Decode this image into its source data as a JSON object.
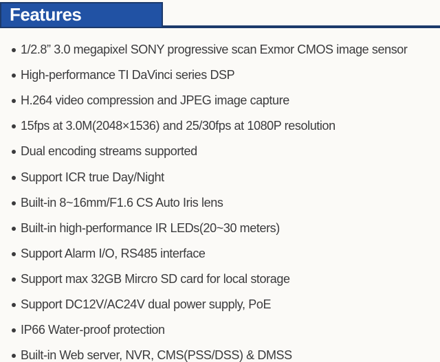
{
  "header": {
    "title": "Features"
  },
  "colors": {
    "background": "#fbfaf7",
    "header_fill": "#2152a4",
    "header_border": "#1c3a6b",
    "rule": "#1c3a6b",
    "header_text": "#ffffff",
    "text": "#3b3b3d"
  },
  "features": {
    "items": [
      "1/2.8” 3.0 megapixel SONY progressive scan Exmor CMOS image sensor",
      "High-performance TI DaVinci series DSP",
      "H.264 video compression and JPEG image capture",
      "15fps at 3.0M(2048×1536) and 25/30fps at 1080P resolution",
      "Dual encoding streams supported",
      "Support ICR true Day/Night",
      "Built-in 8~16mm/F1.6 CS Auto Iris lens",
      "Built-in high-performance IR LEDs(20~30 meters)",
      "Support Alarm I/O, RS485 interface",
      "Support max 32GB Mircro SD card for local storage",
      "Support DC12V/AC24V dual power supply, PoE",
      "IP66 Water-proof protection",
      "Built-in Web server, NVR, CMS(PSS/DSS) & DMSS"
    ]
  }
}
